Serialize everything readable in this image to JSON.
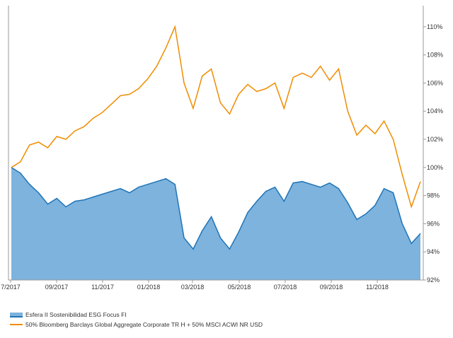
{
  "chart_data": {
    "type": "line",
    "x": [
      "07/2017",
      "07/2017",
      "07/2017",
      "08/2017",
      "08/2017",
      "08/2017",
      "08/2017",
      "09/2017",
      "09/2017",
      "10/2017",
      "10/2017",
      "11/2017",
      "11/2017",
      "12/2017",
      "12/2017",
      "01/2018",
      "01/2018",
      "01/2018",
      "02/2018",
      "02/2018",
      "02/2018",
      "03/2018",
      "03/2018",
      "03/2018",
      "04/2018",
      "04/2018",
      "05/2018",
      "05/2018",
      "06/2018",
      "06/2018",
      "07/2018",
      "07/2018",
      "08/2018",
      "08/2018",
      "09/2018",
      "09/2018",
      "10/2018",
      "10/2018",
      "10/2018",
      "11/2018",
      "11/2018",
      "12/2018",
      "12/2018",
      "12/2018",
      "12/2018",
      "12/2018"
    ],
    "x_ticks": [
      "7/2017",
      "09/2017",
      "11/2017",
      "01/2018",
      "03/2018",
      "05/2018",
      "07/2018",
      "09/2018",
      "11/2018"
    ],
    "y_ticks": [
      "110%",
      "108%",
      "106%",
      "104%",
      "102%",
      "100%",
      "98%",
      "96%",
      "94%",
      "92%"
    ],
    "ylim": [
      92,
      111.5
    ],
    "grid": false,
    "legend_position": "bottom-left",
    "series": [
      {
        "name": "Esfera II Sostenibilidad ESG Focus FI",
        "type": "area",
        "color": "#1f74b8",
        "fill": "#7db3dd",
        "x_index": [
          0,
          1,
          2,
          3,
          4,
          5,
          6,
          7,
          8,
          9,
          10,
          11,
          12,
          13,
          14,
          15,
          16,
          17,
          18,
          19,
          20,
          21,
          22,
          23,
          24,
          25,
          26,
          27,
          28,
          29,
          30,
          31,
          32,
          33,
          34,
          35,
          36,
          37,
          38,
          39,
          40,
          41,
          42,
          43,
          44,
          45
        ],
        "values": [
          100.0,
          99.6,
          98.8,
          98.2,
          97.4,
          97.8,
          97.2,
          97.6,
          97.7,
          97.9,
          98.1,
          98.3,
          98.5,
          98.2,
          98.6,
          98.8,
          99.0,
          99.2,
          98.8,
          95.0,
          94.2,
          95.5,
          96.5,
          95.0,
          94.2,
          95.4,
          96.8,
          97.6,
          98.3,
          98.6,
          97.6,
          98.9,
          99.0,
          98.8,
          98.6,
          98.9,
          98.5,
          97.5,
          96.3,
          96.7,
          97.3,
          98.5,
          98.2,
          96.0,
          94.6,
          95.3
        ]
      },
      {
        "name": "50% Bloomberg Barclays Global Aggregate Corporate TR H + 50% MSCI ACWI NR USD",
        "type": "line",
        "color": "#f08c00",
        "values": [
          100.0,
          100.4,
          101.6,
          101.8,
          101.4,
          102.2,
          102.0,
          102.6,
          102.9,
          103.5,
          103.9,
          104.5,
          105.1,
          105.2,
          105.6,
          106.3,
          107.2,
          108.5,
          110.0,
          106.0,
          104.2,
          106.5,
          107.0,
          104.6,
          103.8,
          105.2,
          105.9,
          105.4,
          105.6,
          106.0,
          104.2,
          106.4,
          106.7,
          106.4,
          107.2,
          106.2,
          107.0,
          104.0,
          102.3,
          103.0,
          102.4,
          103.3,
          102.0,
          99.5,
          97.2,
          99.0
        ]
      }
    ]
  },
  "legend": {
    "series_1": "Esfera II Sostenibilidad ESG Focus FI",
    "series_2": "50% Bloomberg Barclays Global Aggregate Corporate TR H + 50% MSCI ACWI NR USD"
  }
}
